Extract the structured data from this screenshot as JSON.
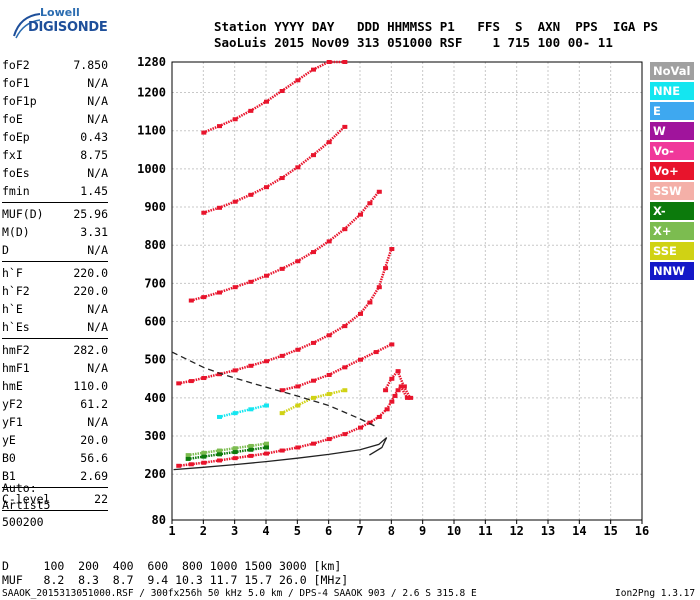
{
  "logo": {
    "line1": "Lowell",
    "line2": "DIGISONDE"
  },
  "header": {
    "line1": "Station YYYY DAY   DDD HHMMSS P1   FFS  S  AXN  PPS  IGA PS",
    "line2": "SaoLuis 2015 Nov09 313 051000 RSF    1 715 100 00- 11"
  },
  "params_group1": [
    {
      "k": "foF2",
      "v": "7.850"
    },
    {
      "k": "foF1",
      "v": "N/A"
    },
    {
      "k": "foF1p",
      "v": "N/A"
    },
    {
      "k": "foE",
      "v": "N/A"
    },
    {
      "k": "foEp",
      "v": "0.43"
    },
    {
      "k": "fxI",
      "v": "8.75"
    },
    {
      "k": "foEs",
      "v": "N/A"
    },
    {
      "k": "fmin",
      "v": "1.45"
    }
  ],
  "params_group2": [
    {
      "k": "MUF(D)",
      "v": "25.96"
    },
    {
      "k": "M(D)",
      "v": "3.31"
    },
    {
      "k": "D",
      "v": "N/A"
    }
  ],
  "params_group3": [
    {
      "k": "h`F",
      "v": "220.0"
    },
    {
      "k": "h`F2",
      "v": "220.0"
    },
    {
      "k": "h`E",
      "v": "N/A"
    },
    {
      "k": "h`Es",
      "v": "N/A"
    }
  ],
  "params_group4": [
    {
      "k": "hmF2",
      "v": "282.0"
    },
    {
      "k": "hmF1",
      "v": "N/A"
    },
    {
      "k": "hmE",
      "v": "110.0"
    },
    {
      "k": "yF2",
      "v": "61.2"
    },
    {
      "k": "yF1",
      "v": "N/A"
    },
    {
      "k": "yE",
      "v": "20.0"
    },
    {
      "k": "B0",
      "v": "56.6"
    },
    {
      "k": "B1",
      "v": "2.69"
    }
  ],
  "params_group5": [
    {
      "k": "C-level",
      "v": "22"
    }
  ],
  "side_bottom": {
    "auto": "Auto:",
    "artist": "Artist5",
    "code": "500200"
  },
  "legend": [
    {
      "label": "NoVal",
      "color": "#a0a0a0"
    },
    {
      "label": "NNE",
      "color": "#14e6f0"
    },
    {
      "label": "E",
      "color": "#3ea8f0"
    },
    {
      "label": "W",
      "color": "#a0149c"
    },
    {
      "label": "Vo-",
      "color": "#f0389a"
    },
    {
      "label": "Vo+",
      "color": "#e8142c"
    },
    {
      "label": "SSW",
      "color": "#f4b0a8"
    },
    {
      "label": "X-",
      "color": "#0c7a0c"
    },
    {
      "label": "X+",
      "color": "#7cbc50"
    },
    {
      "label": "SSE",
      "color": "#d0d214"
    },
    {
      "label": "NNW",
      "color": "#1418c8"
    }
  ],
  "footer": {
    "d_row": "D     100  200  400  600  800 1000 1500 3000 [km]",
    "muf_row": "MUF   8.2  8.3  8.7  9.4 10.3 11.7 15.7 26.0 [MHz]",
    "file_row": "SAAOK_2015313051000.RSF / 300fx256h 50 kHz 5.0 km / DPS-4 SAAOK 903 / 2.6 S 315.8 E",
    "version": "Ion2Png 1.3.17"
  },
  "chart_data": {
    "type": "scatter",
    "xlim": [
      1,
      16
    ],
    "ylim": [
      80,
      1280
    ],
    "x_ticks": [
      1,
      2,
      3,
      4,
      5,
      6,
      7,
      8,
      9,
      10,
      11,
      12,
      13,
      14,
      15,
      16
    ],
    "y_ticks": [
      80,
      200,
      300,
      400,
      500,
      600,
      700,
      800,
      900,
      1000,
      1100,
      1200,
      1280
    ],
    "grid": true,
    "series": [
      {
        "name": "Vo+",
        "color": "#e8142c",
        "x": [
          1.2,
          1.6,
          2.0,
          2.5,
          3.0,
          3.5,
          4.0,
          4.5,
          5.0,
          5.5,
          6.0,
          6.5,
          7.0,
          7.3,
          7.6,
          7.85,
          8.0,
          8.1,
          8.2,
          8.3,
          8.5
        ],
        "y": [
          222,
          226,
          230,
          236,
          242,
          248,
          254,
          262,
          270,
          280,
          292,
          305,
          322,
          335,
          350,
          370,
          390,
          405,
          420,
          430,
          400
        ]
      },
      {
        "name": "Vo+",
        "color": "#e8142c",
        "x": [
          1.2,
          1.6,
          2.0,
          2.5,
          3.0,
          3.5,
          4.0,
          4.5,
          5.0,
          5.5,
          6.0,
          6.5,
          7.0,
          7.3,
          7.6,
          7.8,
          8.0
        ],
        "y": [
          438,
          444,
          452,
          462,
          472,
          484,
          496,
          510,
          526,
          544,
          564,
          588,
          620,
          650,
          690,
          740,
          790
        ]
      },
      {
        "name": "Vo+",
        "color": "#e8142c",
        "x": [
          1.6,
          2.0,
          2.5,
          3.0,
          3.5,
          4.0,
          4.5,
          5.0,
          5.5,
          6.0,
          6.5,
          7.0,
          7.3,
          7.6
        ],
        "y": [
          655,
          664,
          676,
          690,
          704,
          720,
          738,
          758,
          782,
          810,
          842,
          880,
          910,
          940
        ]
      },
      {
        "name": "Vo+",
        "color": "#e8142c",
        "x": [
          2.0,
          2.5,
          3.0,
          3.5,
          4.0,
          4.5,
          5.0,
          5.5,
          6.0,
          6.5
        ],
        "y": [
          885,
          898,
          914,
          932,
          952,
          976,
          1004,
          1036,
          1070,
          1110
        ]
      },
      {
        "name": "Vo+",
        "color": "#e8142c",
        "x": [
          2.0,
          2.5,
          3.0,
          3.5,
          4.0,
          4.5,
          5.0,
          5.5,
          6.0,
          6.5
        ],
        "y": [
          1095,
          1112,
          1130,
          1152,
          1176,
          1204,
          1232,
          1260,
          1280,
          1280
        ]
      },
      {
        "name": "X+",
        "color": "#7cbc50",
        "x": [
          1.5,
          2.0,
          2.5,
          3.0,
          3.5,
          4.0
        ],
        "y": [
          250,
          256,
          262,
          268,
          274,
          280
        ]
      },
      {
        "name": "Vo+",
        "color": "#e8142c",
        "x": [
          4.5,
          5.0,
          5.5,
          6.0,
          6.5,
          7.0,
          7.5,
          8.0
        ],
        "y": [
          420,
          430,
          445,
          460,
          480,
          500,
          520,
          540
        ]
      },
      {
        "name": "SSE",
        "color": "#d0d214",
        "x": [
          4.5,
          5.0,
          5.5,
          6.0,
          6.5
        ],
        "y": [
          360,
          380,
          400,
          410,
          420
        ]
      },
      {
        "name": "X-",
        "color": "#0c7a0c",
        "x": [
          1.5,
          2.0,
          2.5,
          3.0,
          3.5,
          4.0
        ],
        "y": [
          240,
          246,
          252,
          258,
          264,
          270
        ]
      },
      {
        "name": "NNE",
        "color": "#14e6f0",
        "x": [
          2.5,
          3.0,
          3.5,
          4.0
        ],
        "y": [
          350,
          360,
          370,
          380
        ]
      },
      {
        "name": "Vo+",
        "color": "#e8142c",
        "x": [
          7.8,
          8.0,
          8.2,
          8.4,
          8.6
        ],
        "y": [
          420,
          450,
          470,
          430,
          400
        ]
      }
    ],
    "profile_curves": [
      {
        "style": "solid",
        "color": "#222222",
        "x": [
          1.05,
          2,
          3,
          4,
          5,
          6,
          7,
          7.6,
          7.85,
          7.7,
          7.3
        ],
        "y": [
          212,
          218,
          225,
          233,
          242,
          252,
          264,
          278,
          296,
          270,
          250
        ]
      },
      {
        "style": "dashed",
        "color": "#222222",
        "x": [
          1.0,
          1.5,
          2.0,
          2.5,
          3.0,
          3.5,
          4.0,
          5.0,
          6.0,
          7.0,
          7.5
        ],
        "y": [
          520,
          500,
          480,
          465,
          452,
          440,
          428,
          405,
          380,
          345,
          325
        ]
      }
    ]
  }
}
